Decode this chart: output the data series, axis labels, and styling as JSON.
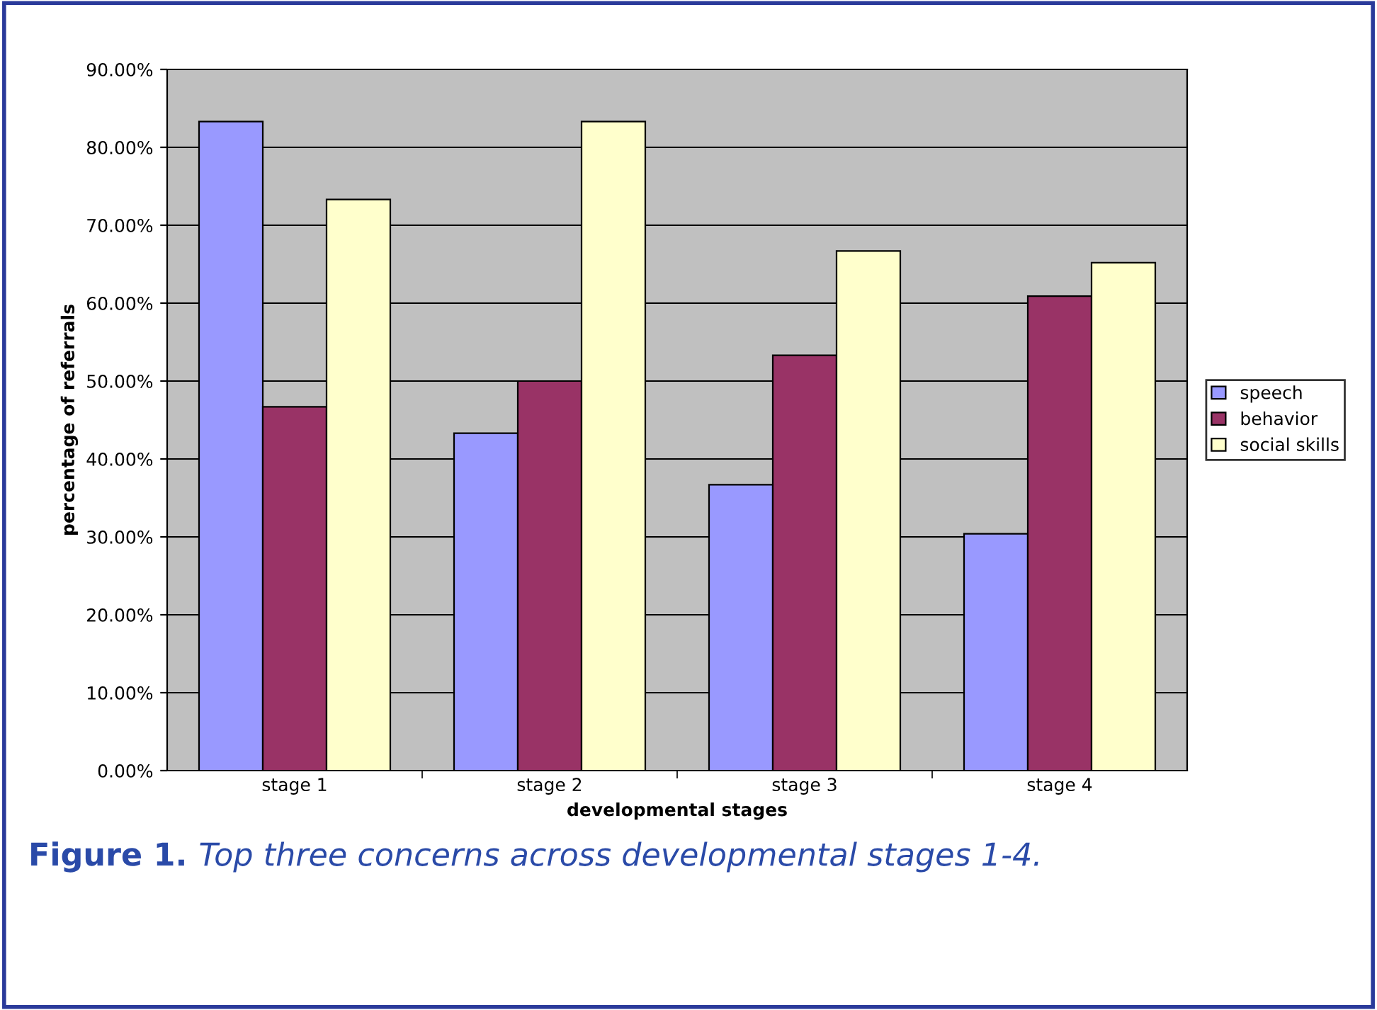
{
  "chart_data": {
    "type": "bar",
    "xlabel": "developmental stages",
    "ylabel": "percentage of referrals",
    "categories": [
      "stage 1",
      "stage 2",
      "stage 3",
      "stage 4"
    ],
    "series": [
      {
        "name": "speech",
        "color": "#9999ff",
        "values": [
          83.3,
          43.3,
          36.7,
          30.4
        ]
      },
      {
        "name": "behavior",
        "color": "#993366",
        "values": [
          46.7,
          50.0,
          53.3,
          60.9
        ]
      },
      {
        "name": "social skills",
        "color": "#ffffcc",
        "values": [
          73.3,
          83.3,
          66.7,
          65.2
        ]
      }
    ],
    "ylim": [
      0,
      90
    ],
    "yticks": [
      {
        "value": 0,
        "label": "0.00%"
      },
      {
        "value": 10,
        "label": "10.00%"
      },
      {
        "value": 20,
        "label": "20.00%"
      },
      {
        "value": 30,
        "label": "30.00%"
      },
      {
        "value": 40,
        "label": "40.00%"
      },
      {
        "value": 50,
        "label": "50.00%"
      },
      {
        "value": 60,
        "label": "60.00%"
      },
      {
        "value": 70,
        "label": "70.00%"
      },
      {
        "value": 80,
        "label": "80.00%"
      },
      {
        "value": 90,
        "label": "90.00%"
      }
    ],
    "grid": "y",
    "legend": "right",
    "annotations": [
      "Figure 1.",
      "Top three concerns across developmental stages 1-4."
    ]
  }
}
